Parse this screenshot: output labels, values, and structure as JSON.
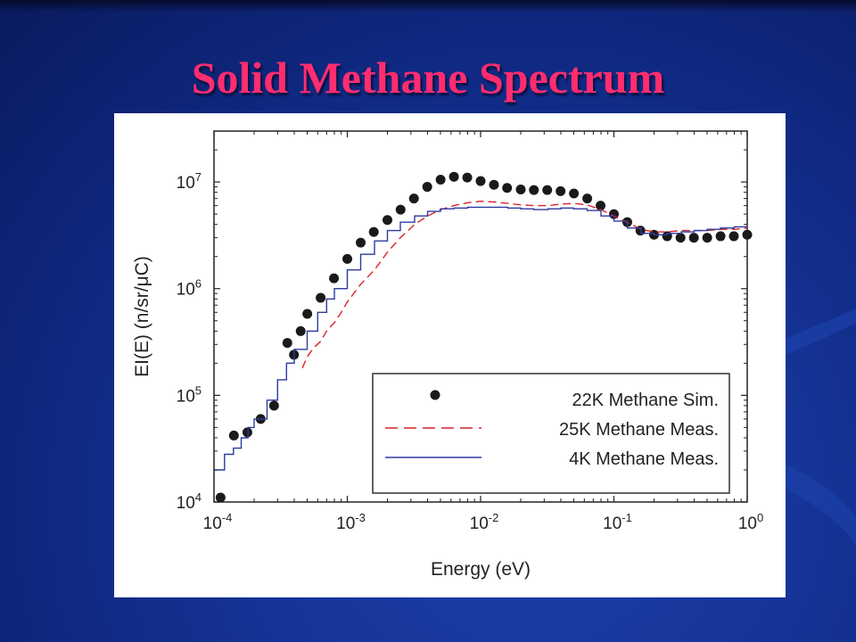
{
  "slide": {
    "title": "Solid Methane Spectrum"
  },
  "chart_data": {
    "type": "line",
    "xlabel": "Energy (eV)",
    "ylabel": "EI(E) (n/sr/μC)",
    "xscale": "log",
    "yscale": "log",
    "xlim": [
      0.0001,
      1
    ],
    "ylim": [
      10000,
      30000000
    ],
    "xticks": [
      {
        "base": "10",
        "exp": "-4"
      },
      {
        "base": "10",
        "exp": "-3"
      },
      {
        "base": "10",
        "exp": "-2"
      },
      {
        "base": "10",
        "exp": "-1"
      },
      {
        "base": "10",
        "exp": "0"
      }
    ],
    "yticks": [
      {
        "base": "10",
        "exp": "4"
      },
      {
        "base": "10",
        "exp": "5"
      },
      {
        "base": "10",
        "exp": "6"
      },
      {
        "base": "10",
        "exp": "7"
      }
    ],
    "legend_position": "bottom-right",
    "series": [
      {
        "name": "22K Methane Sim.",
        "style": "dots",
        "color": "#1a1a1a",
        "x": [
          0.000112,
          0.000141,
          0.000178,
          0.000224,
          0.000282,
          0.000355,
          0.000398,
          0.000447,
          0.000501,
          0.000631,
          0.000794,
          0.001,
          0.00126,
          0.00158,
          0.002,
          0.00251,
          0.00316,
          0.00398,
          0.00501,
          0.00631,
          0.00794,
          0.01,
          0.0126,
          0.0158,
          0.02,
          0.0251,
          0.0316,
          0.0398,
          0.0501,
          0.0631,
          0.0794,
          0.1,
          0.126,
          0.158,
          0.2,
          0.251,
          0.316,
          0.398,
          0.501,
          0.631,
          0.794,
          1.0
        ],
        "y": [
          11000,
          42000,
          45000,
          60000,
          80000,
          310000,
          240000,
          400000,
          580000,
          820000,
          1250000,
          1900000,
          2700000,
          3400000,
          4400000,
          5500000,
          7000000,
          9000000,
          10500000,
          11200000,
          11000000,
          10200000,
          9400000,
          8800000,
          8500000,
          8400000,
          8400000,
          8200000,
          7800000,
          7000000,
          6000000,
          5000000,
          4200000,
          3500000,
          3200000,
          3100000,
          3000000,
          3000000,
          3000000,
          3100000,
          3100000,
          3200000
        ]
      },
      {
        "name": "25K Methane Meas.",
        "style": "dashed",
        "color": "#d9232a",
        "x": [
          0.00046,
          0.0005,
          0.00056,
          0.00063,
          0.0007,
          0.0008,
          0.0009,
          0.001,
          0.00126,
          0.0016,
          0.002,
          0.0025,
          0.0032,
          0.004,
          0.005,
          0.0063,
          0.008,
          0.01,
          0.0126,
          0.016,
          0.02,
          0.025,
          0.032,
          0.04,
          0.05,
          0.063,
          0.08,
          0.1,
          0.126,
          0.16,
          0.2,
          0.25,
          0.32,
          0.4,
          0.5,
          0.63,
          0.8,
          1.0
        ],
        "y": [
          180000,
          230000,
          280000,
          320000,
          400000,
          480000,
          600000,
          750000,
          1100000,
          1500000,
          2200000,
          3000000,
          4000000,
          4800000,
          5500000,
          6000000,
          6400000,
          6600000,
          6500000,
          6300000,
          6100000,
          6000000,
          6000000,
          6200000,
          6300000,
          6100000,
          5500000,
          4800000,
          4200000,
          3600000,
          3400000,
          3400000,
          3500000,
          3500000,
          3500000,
          3600000,
          3600000,
          3700000
        ]
      },
      {
        "name": "4K Methane Meas.",
        "style": "solid",
        "color": "#2b3aa0",
        "x": [
          0.0001,
          0.00012,
          0.00014,
          0.00016,
          0.00018,
          0.0002,
          0.00025,
          0.0003,
          0.00035,
          0.0004,
          0.0005,
          0.0006,
          0.0007,
          0.0008,
          0.001,
          0.00126,
          0.0016,
          0.002,
          0.0025,
          0.0032,
          0.004,
          0.005,
          0.0063,
          0.008,
          0.01,
          0.0126,
          0.016,
          0.02,
          0.025,
          0.032,
          0.04,
          0.05,
          0.063,
          0.08,
          0.1,
          0.126,
          0.16,
          0.2,
          0.25,
          0.32,
          0.4,
          0.5,
          0.63,
          0.8,
          1.0
        ],
        "y": [
          20000,
          28000,
          32000,
          40000,
          50000,
          60000,
          90000,
          140000,
          200000,
          270000,
          400000,
          600000,
          800000,
          1000000,
          1500000,
          2100000,
          2800000,
          3500000,
          4200000,
          4800000,
          5300000,
          5600000,
          5700000,
          5800000,
          5800000,
          5800000,
          5700000,
          5600000,
          5500000,
          5600000,
          5700000,
          5600000,
          5400000,
          4800000,
          4300000,
          3700000,
          3300000,
          3200000,
          3300000,
          3400000,
          3500000,
          3600000,
          3700000,
          3800000,
          3900000
        ]
      }
    ]
  }
}
